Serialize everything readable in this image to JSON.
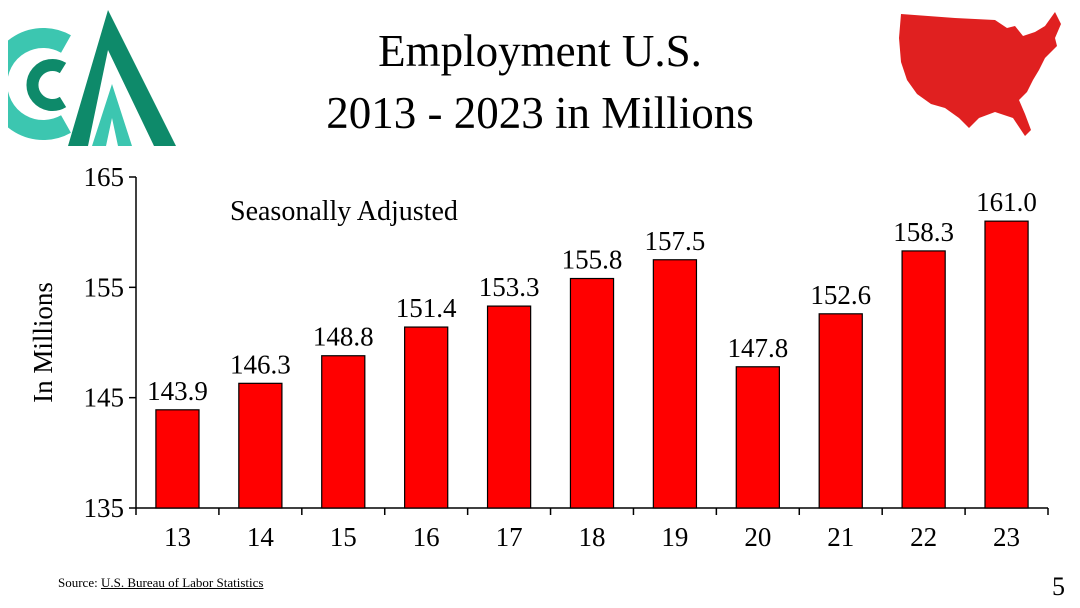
{
  "header": {
    "title_line1": "Employment U.S.",
    "title_line2": "2013 - 2023 in Millions",
    "logo_icon": "company-logo-icon",
    "map_icon": "usa-map-icon"
  },
  "footer": {
    "source_label": "Source:",
    "source_link": "U.S. Bureau of Labor Statistics",
    "page_number": "5"
  },
  "colors": {
    "bar": "#ff0000",
    "map": "#e02020",
    "logo_dark": "#0e8a6a",
    "logo_light": "#3cc6b0"
  },
  "chart_data": {
    "type": "bar",
    "annotation": "Seasonally Adjusted",
    "ylabel": "In Millions",
    "xlabel": "",
    "ylim": [
      135,
      165
    ],
    "yticks": [
      135,
      145,
      155,
      165
    ],
    "categories": [
      "13",
      "14",
      "15",
      "16",
      "17",
      "18",
      "19",
      "20",
      "21",
      "22",
      "23"
    ],
    "values": [
      143.9,
      146.3,
      148.8,
      151.4,
      153.3,
      155.8,
      157.5,
      147.8,
      152.6,
      158.3,
      161.0
    ],
    "data_labels": [
      "143.9",
      "146.3",
      "148.8",
      "151.4",
      "153.3",
      "155.8",
      "157.5",
      "147.8",
      "152.6",
      "158.3",
      "161.0"
    ],
    "grid": false,
    "legend": "none"
  }
}
